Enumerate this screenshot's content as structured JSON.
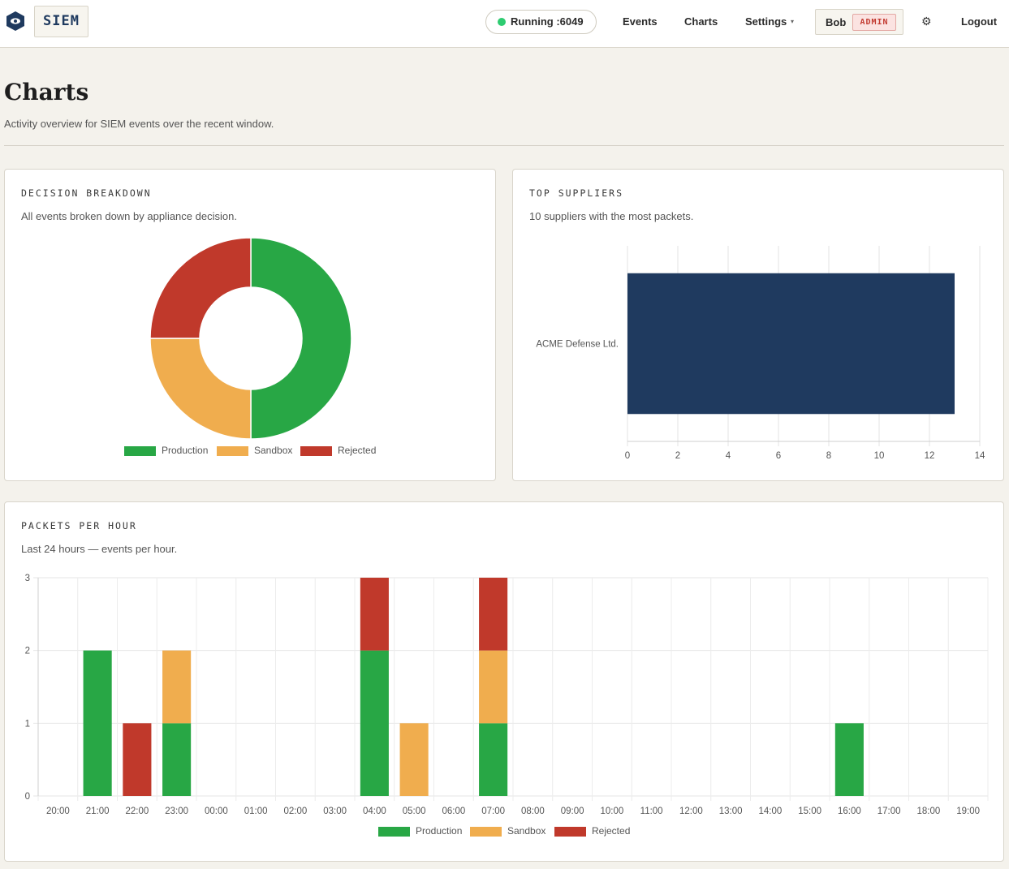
{
  "header": {
    "brand": "SIEM",
    "status": "Running :6049",
    "nav": [
      "Events",
      "Charts",
      "Settings"
    ],
    "user": "Bob",
    "role_badge": "ADMIN",
    "logout": "Logout"
  },
  "page": {
    "title": "Charts",
    "subtitle": "Activity overview for SIEM events over the recent window."
  },
  "colors": {
    "production": "#28a745",
    "sandbox": "#f0ad4e",
    "rejected": "#c0392b",
    "supplier_bar": "#1f3a5f",
    "status_dot": "#2ecc71"
  },
  "cards": {
    "decision": {
      "title": "DECISION BREAKDOWN",
      "subtitle": "All events broken down by appliance decision."
    },
    "suppliers": {
      "title": "TOP SUPPLIERS",
      "subtitle": "10 suppliers with the most packets."
    },
    "hourly": {
      "title": "PACKETS PER HOUR",
      "subtitle": "Last 24 hours — events per hour."
    }
  },
  "chart_data": [
    {
      "type": "pie",
      "variant": "doughnut",
      "labels": [
        "Production",
        "Sandbox",
        "Rejected"
      ],
      "values": [
        6,
        3,
        3
      ],
      "legend": "bottom"
    },
    {
      "type": "bar",
      "orientation": "horizontal",
      "categories": [
        "ACME Defense Ltd."
      ],
      "values": [
        13
      ],
      "xlim": [
        0,
        14
      ],
      "xticks": [
        0,
        2,
        4,
        6,
        8,
        10,
        12,
        14
      ],
      "grid": true
    },
    {
      "type": "bar",
      "stacked": true,
      "categories": [
        "20:00",
        "21:00",
        "22:00",
        "23:00",
        "00:00",
        "01:00",
        "02:00",
        "03:00",
        "04:00",
        "05:00",
        "06:00",
        "07:00",
        "08:00",
        "09:00",
        "10:00",
        "11:00",
        "12:00",
        "13:00",
        "14:00",
        "15:00",
        "16:00",
        "17:00",
        "18:00",
        "19:00"
      ],
      "series": [
        {
          "name": "Production",
          "values": [
            0,
            2,
            0,
            1,
            0,
            0,
            0,
            0,
            2,
            0,
            0,
            1,
            0,
            0,
            0,
            0,
            0,
            0,
            0,
            0,
            1,
            0,
            0,
            0
          ]
        },
        {
          "name": "Sandbox",
          "values": [
            0,
            0,
            0,
            1,
            0,
            0,
            0,
            0,
            0,
            1,
            0,
            1,
            0,
            0,
            0,
            0,
            0,
            0,
            0,
            0,
            0,
            0,
            0,
            0
          ]
        },
        {
          "name": "Rejected",
          "values": [
            0,
            0,
            1,
            0,
            0,
            0,
            0,
            0,
            1,
            0,
            0,
            1,
            0,
            0,
            0,
            0,
            0,
            0,
            0,
            0,
            0,
            0,
            0,
            0
          ]
        }
      ],
      "ylim": [
        0,
        3
      ],
      "yticks": [
        0,
        1,
        2,
        3
      ],
      "legend": "bottom",
      "grid": true
    }
  ]
}
